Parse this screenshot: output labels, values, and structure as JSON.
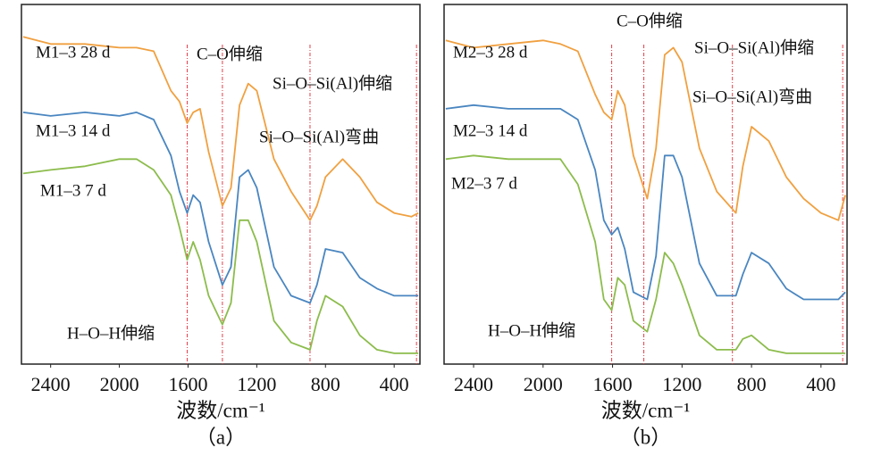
{
  "chart_data": [
    {
      "type": "line",
      "subtitle": "（a）",
      "x_label": "波数/cm⁻¹",
      "xlim": [
        2570,
        250
      ],
      "ylim": [
        0,
        100
      ],
      "xticks": [
        2400,
        2000,
        1600,
        1200,
        800,
        400
      ],
      "x": [
        2560,
        2400,
        2200,
        2000,
        1900,
        1800,
        1700,
        1650,
        1605,
        1570,
        1530,
        1480,
        1400,
        1350,
        1300,
        1250,
        1200,
        1100,
        1000,
        890,
        850,
        800,
        700,
        600,
        500,
        400,
        300,
        260
      ],
      "series": [
        {
          "name": "M1–3  28 d",
          "color": "#f0a040",
          "values": [
            91,
            89,
            89,
            88,
            88,
            87,
            76,
            73,
            67,
            70,
            71,
            59,
            44,
            49,
            72,
            78,
            76,
            57,
            48,
            40,
            44,
            52,
            57,
            52,
            45,
            42,
            41,
            42
          ]
        },
        {
          "name": "M1–3  14 d",
          "color": "#4a86c0",
          "values": [
            70,
            69,
            70,
            69,
            70,
            68,
            58,
            48,
            42,
            47,
            45,
            34,
            22,
            27,
            52,
            54,
            49,
            27,
            19,
            17,
            22,
            32,
            31,
            24,
            21,
            19,
            19,
            19
          ]
        },
        {
          "name": "M1–3  7 d",
          "color": "#8cbc4c",
          "values": [
            53,
            54,
            55,
            57,
            57,
            54,
            47,
            38,
            29,
            34,
            29,
            19,
            11,
            17,
            40,
            40,
            34,
            12,
            6,
            4,
            12,
            19,
            16,
            8,
            4,
            3,
            3,
            3
          ]
        }
      ],
      "reference_lines": [
        1605,
        1400,
        890,
        270
      ],
      "annotations": [
        "C–O伸缩",
        "Si–O–Si(Al)伸缩",
        "Si–O–Si(Al)弯曲",
        "H–O–H伸缩"
      ]
    },
    {
      "type": "line",
      "subtitle": "（b）",
      "x_label": "波数/cm⁻¹",
      "xlim": [
        2570,
        250
      ],
      "ylim": [
        0,
        100
      ],
      "xticks": [
        2400,
        2000,
        1600,
        1200,
        800,
        400
      ],
      "x": [
        2560,
        2400,
        2200,
        2000,
        1900,
        1800,
        1700,
        1650,
        1605,
        1570,
        1530,
        1480,
        1400,
        1350,
        1300,
        1250,
        1200,
        1100,
        1000,
        890,
        850,
        800,
        700,
        600,
        500,
        400,
        300,
        260
      ],
      "series": [
        {
          "name": "M2–3  28 d",
          "color": "#f0a040",
          "values": [
            90,
            88,
            89,
            90,
            89,
            87,
            75,
            70,
            68,
            76,
            72,
            58,
            46,
            60,
            86,
            88,
            84,
            60,
            48,
            42,
            55,
            66,
            62,
            52,
            46,
            42,
            40,
            47
          ]
        },
        {
          "name": "M2–3  14 d",
          "color": "#4a86c0",
          "values": [
            71,
            72,
            71,
            71,
            71,
            68,
            54,
            40,
            36,
            38,
            32,
            20,
            18,
            30,
            58,
            58,
            52,
            28,
            19,
            19,
            25,
            31,
            28,
            21,
            18,
            18,
            18,
            20
          ]
        },
        {
          "name": "M2–3  7 d",
          "color": "#8cbc4c",
          "values": [
            57,
            58,
            57,
            57,
            57,
            50,
            34,
            18,
            15,
            24,
            22,
            12,
            9,
            18,
            31,
            28,
            22,
            8,
            4,
            4,
            7,
            8,
            4,
            3,
            3,
            3,
            3,
            3
          ]
        }
      ],
      "reference_lines": [
        1605,
        1420,
        910,
        275
      ],
      "annotations": [
        "C–O伸缩",
        "Si–O–Si(Al)伸缩",
        "Si–O–Si(Al)弯曲",
        "H–O–H伸缩"
      ]
    }
  ]
}
